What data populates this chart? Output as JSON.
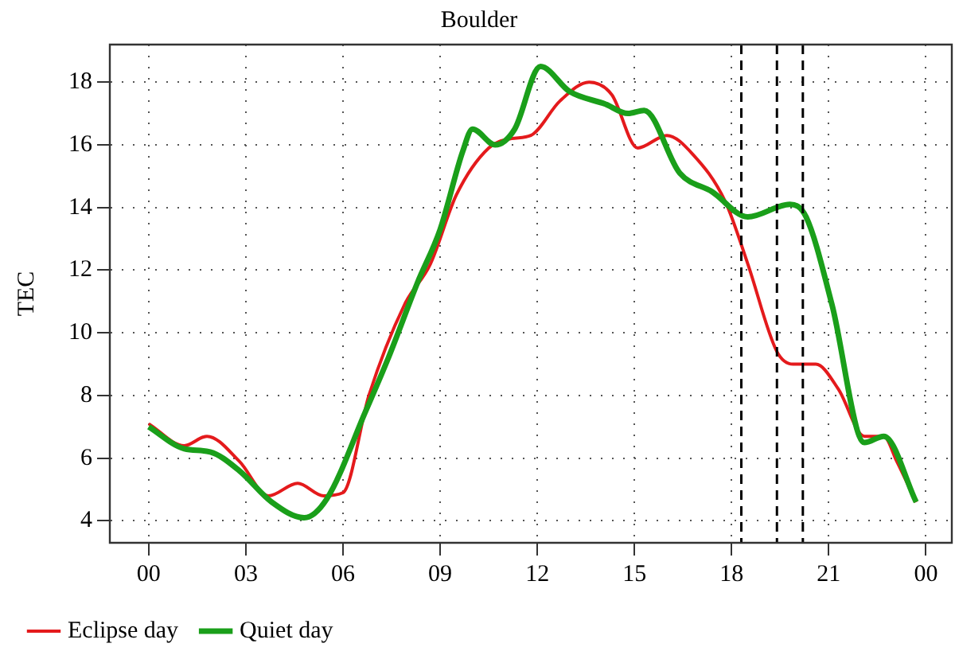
{
  "chart_data": {
    "type": "line",
    "title": "Boulder",
    "ylabel": "TEC",
    "xlim": [
      -1.2,
      24.8
    ],
    "ylim": [
      3.3,
      19.2
    ],
    "xticks": [
      {
        "value": 0,
        "label": "00"
      },
      {
        "value": 3,
        "label": "03"
      },
      {
        "value": 6,
        "label": "06"
      },
      {
        "value": 9,
        "label": "09"
      },
      12,
      15,
      18,
      21,
      {
        "value": 24,
        "label": "00"
      }
    ],
    "yticks": [
      4,
      6,
      8,
      10,
      12,
      14,
      16,
      18
    ],
    "grid": true,
    "legend": "bottom left",
    "marker": "none",
    "line_style": "solid",
    "series": [
      {
        "name": "Eclipse day",
        "color": "#e41a1c",
        "x": [
          0,
          1.1,
          1.8,
          2.8,
          3.7,
          4.6,
          5.4,
          6.0,
          6.8,
          7.9,
          8.7,
          9.5,
          10.5,
          11.2,
          11.8,
          12.7,
          13.6,
          14.3,
          15.1,
          16.0,
          16.8,
          17.8,
          18.5,
          19.4,
          19.9,
          20.6,
          21.3,
          22.1,
          22.7,
          23.1,
          23.7
        ],
        "values": [
          7.1,
          6.4,
          6.7,
          5.9,
          4.8,
          5.2,
          4.8,
          4.9,
          8.0,
          10.9,
          12.2,
          14.4,
          15.9,
          16.2,
          16.3,
          17.4,
          18.0,
          17.6,
          15.9,
          16.3,
          15.7,
          14.2,
          12.2,
          9.4,
          9.0,
          9.0,
          8.2,
          6.7,
          6.7,
          5.9,
          4.6
        ]
      },
      {
        "name": "Quiet day",
        "color": "#1a9f1a",
        "x": [
          0,
          1.1,
          1.9,
          2.8,
          3.8,
          4.8,
          5.5,
          6.7,
          7.4,
          8.3,
          9.0,
          9.7,
          10.0,
          10.7,
          11.3,
          12.1,
          13.0,
          14.1,
          14.8,
          15.3,
          16.4,
          17.4,
          18.5,
          19.8,
          20.3,
          21.1,
          22.1,
          22.7,
          23.7
        ],
        "values": [
          7.0,
          6.3,
          6.2,
          5.6,
          4.6,
          4.1,
          4.7,
          7.5,
          9.2,
          11.6,
          13.3,
          15.8,
          16.5,
          16.0,
          16.5,
          18.5,
          17.7,
          17.3,
          17.0,
          17.1,
          15.1,
          14.5,
          13.7,
          14.1,
          13.7,
          10.9,
          6.5,
          6.7,
          4.6
        ]
      }
    ],
    "ref_lines": [
      {
        "axis": "x",
        "value": 18.3,
        "color": "#000000",
        "line_style": "dashed"
      },
      {
        "axis": "x",
        "value": 19.4,
        "color": "#000000",
        "line_style": "dashed"
      },
      {
        "axis": "x",
        "value": 20.2,
        "color": "#000000",
        "line_style": "dashed"
      }
    ]
  }
}
